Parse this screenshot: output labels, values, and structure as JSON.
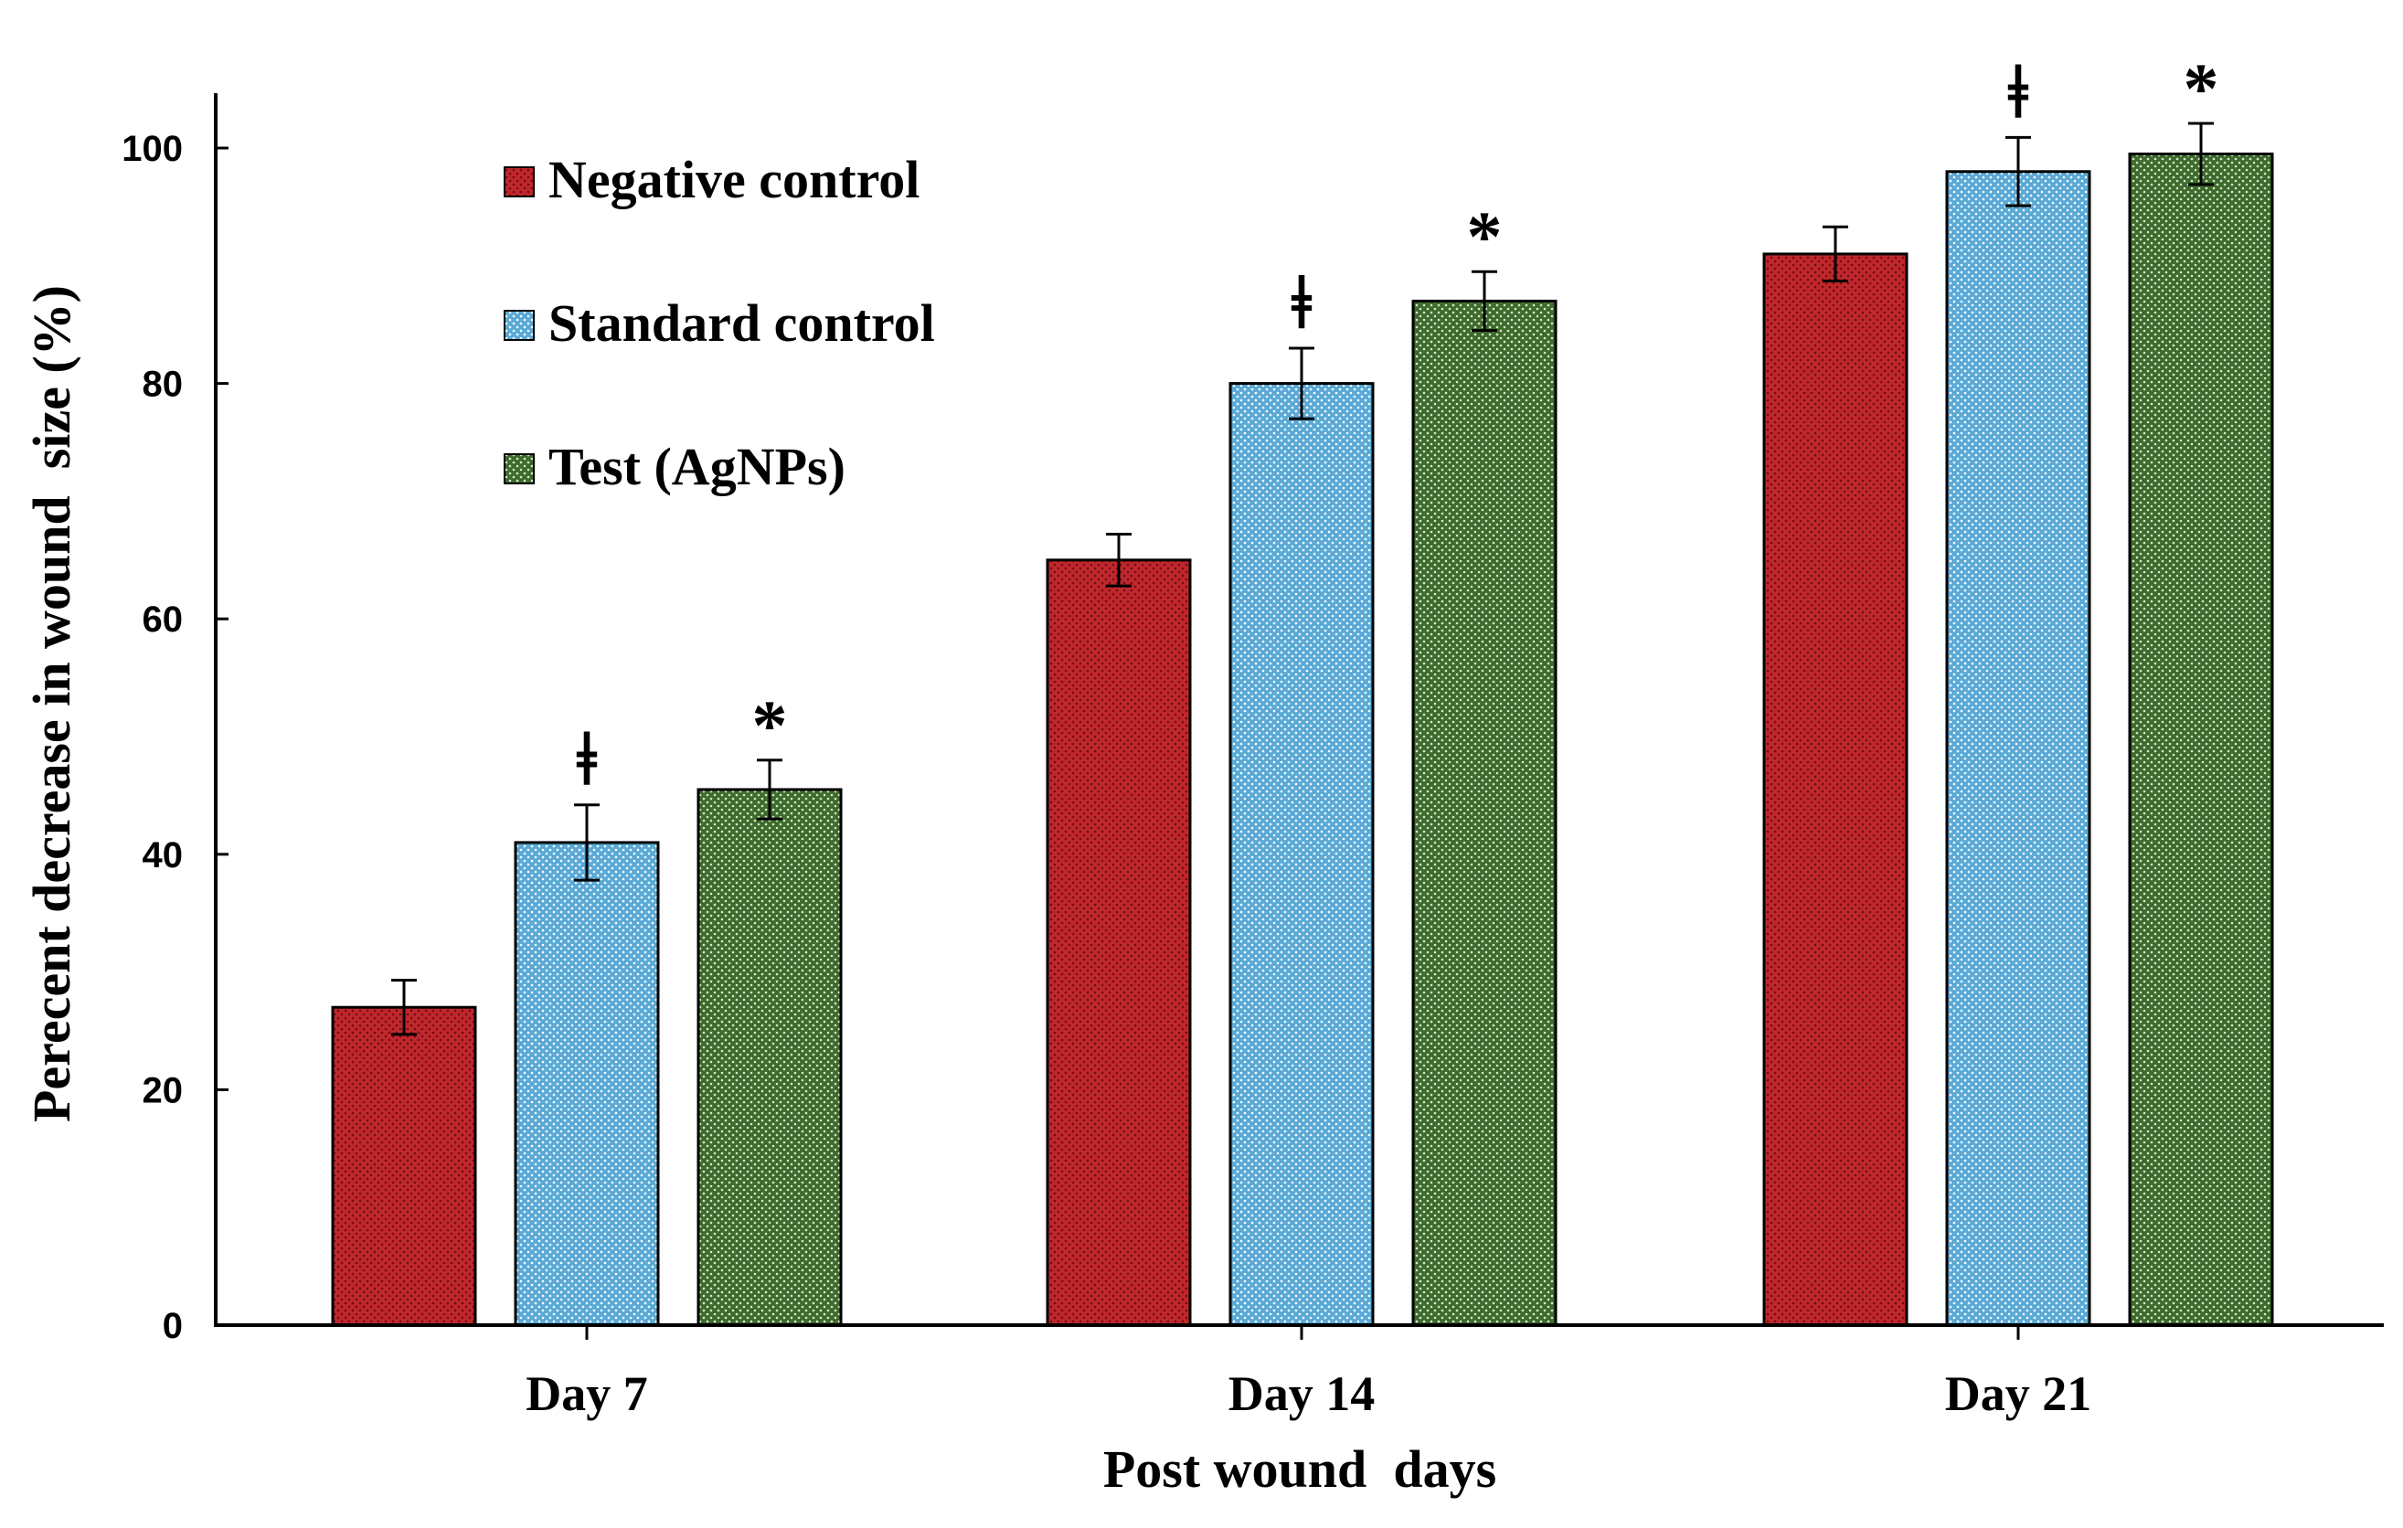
{
  "chart_data": {
    "type": "bar",
    "title": "",
    "xlabel": "Post wound  days",
    "ylabel": "Perecent decrease in wound  size (%)",
    "ylim": [
      0,
      100
    ],
    "yticks": [
      "0",
      "20",
      "40",
      "60",
      "80",
      "100"
    ],
    "categories": [
      "Day 7",
      "Day 14",
      "Day 21"
    ],
    "series": [
      {
        "name": "Negative control",
        "color": "#c0272d",
        "values": [
          27,
          65,
          91
        ],
        "errors": [
          2.3,
          2.2,
          2.3
        ],
        "markers": [
          "",
          "",
          ""
        ]
      },
      {
        "name": "Standard control",
        "color": "#5aa9d6",
        "values": [
          41,
          80,
          98
        ],
        "errors": [
          3.2,
          3.0,
          2.9
        ],
        "markers": [
          "ǂ",
          "ǂ",
          "ǂ"
        ]
      },
      {
        "name": "Test (AgNPs)",
        "color": "#3d6b2c",
        "values": [
          45.5,
          87,
          99.5
        ],
        "errors": [
          2.5,
          2.5,
          2.6
        ],
        "markers": [
          "*",
          "*",
          "*"
        ]
      }
    ],
    "legend_position": "top-left",
    "grid": false
  }
}
